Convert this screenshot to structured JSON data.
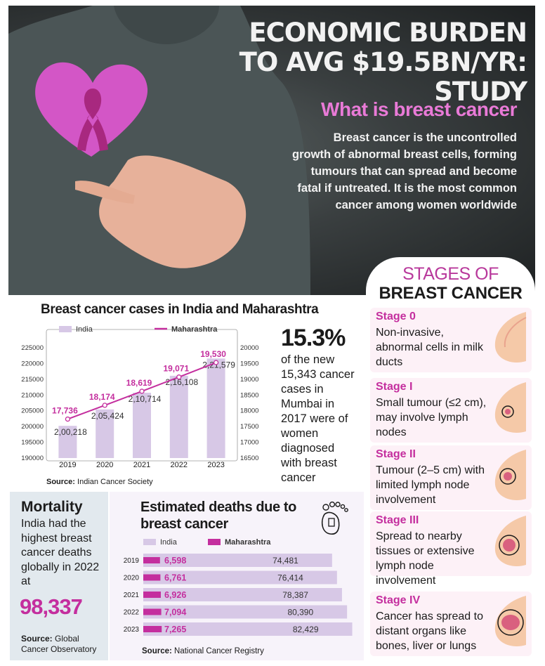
{
  "headline": "ECONOMIC BURDEN TO AVG $19.5BN/YR: STUDY",
  "what_is": {
    "title": "What is breast cancer",
    "body": "Breast cancer is the uncontrolled growth of abnormal breast cells, forming tumours that can spread and become fatal if untreated. It is the most common cancer among women worldwide"
  },
  "colors": {
    "india_bar": "#d7c8e6",
    "maharashtra": "#c42e9e",
    "title_pink": "#e97ad7"
  },
  "stages": {
    "heading_line1": "STAGES OF",
    "heading_line2": "BREAST CANCER",
    "items": [
      {
        "name": "Stage 0",
        "desc": "Non-invasive, abnormal cells in milk ducts"
      },
      {
        "name": "Stage I",
        "desc": "Small tumour (≤2 cm), may involve lymph nodes"
      },
      {
        "name": "Stage II",
        "desc": "Tumour (2–5 cm) with limited lymph node involvement"
      },
      {
        "name": "Stage III",
        "desc": "Spread to nearby tissues or extensive lymph node involvement"
      },
      {
        "name": "Stage IV",
        "desc": "Cancer has spread to distant organs like bones, liver or lungs"
      }
    ]
  },
  "cases": {
    "title": "Breast cancer cases in India and Maharashtra",
    "source_label": "Source:",
    "source_text": "Indian Cancer Society"
  },
  "stat": {
    "value": "15.3%",
    "text": "of the new 15,343 cancer cases in Mumbai in 2017 were of women diagnosed with breast cancer"
  },
  "mortality": {
    "title": "Mortality",
    "text": "India had the highest breast cancer deaths globally in 2022 at",
    "value": "98,337",
    "source_label": "Source:",
    "source_text": "Global Cancer Observatory"
  },
  "deaths": {
    "title": "Estimated deaths due to breast cancer",
    "source_label": "Source:",
    "source_text": "National Cancer Registry"
  },
  "chart_data": [
    {
      "type": "bar",
      "title": "Breast cancer cases in India and Maharashtra",
      "categories": [
        "2019",
        "2020",
        "2021",
        "2022",
        "2023"
      ],
      "series": [
        {
          "name": "India",
          "chart": "bar",
          "axis": "left",
          "values": [
            200218,
            205424,
            210714,
            216108,
            221579
          ],
          "labels": [
            "2,00,218",
            "2,05,424",
            "2,10,714",
            "2,16,108",
            "2,21,579"
          ]
        },
        {
          "name": "Maharashtra",
          "chart": "line",
          "axis": "right",
          "values": [
            17736,
            18174,
            18619,
            19071,
            19530
          ],
          "labels": [
            "17,736",
            "18,174",
            "18,619",
            "19,071",
            "19,530"
          ]
        }
      ],
      "y_left": {
        "range": [
          190000,
          225000
        ],
        "ticks": [
          "190000",
          "195000",
          "200000",
          "205000",
          "210000",
          "215000",
          "220000",
          "225000"
        ]
      },
      "y_right": {
        "range": [
          16500,
          20000
        ],
        "ticks": [
          "16500",
          "17000",
          "17500",
          "18000",
          "18500",
          "19000",
          "19500",
          "20000"
        ]
      },
      "legend": "top"
    },
    {
      "type": "bar",
      "title": "Estimated deaths due to breast cancer",
      "orientation": "horizontal",
      "categories": [
        "2019",
        "2020",
        "2021",
        "2022",
        "2023"
      ],
      "series": [
        {
          "name": "India",
          "values": [
            74481,
            76414,
            78387,
            80390,
            82429
          ],
          "labels": [
            "74,481",
            "76,414",
            "78,387",
            "80,390",
            "82,429"
          ]
        },
        {
          "name": "Maharashtra",
          "values": [
            6598,
            6761,
            6926,
            7094,
            7265
          ],
          "labels": [
            "6,598",
            "6,761",
            "6,926",
            "7,094",
            "7,265"
          ]
        }
      ],
      "legend": "top-left"
    }
  ]
}
